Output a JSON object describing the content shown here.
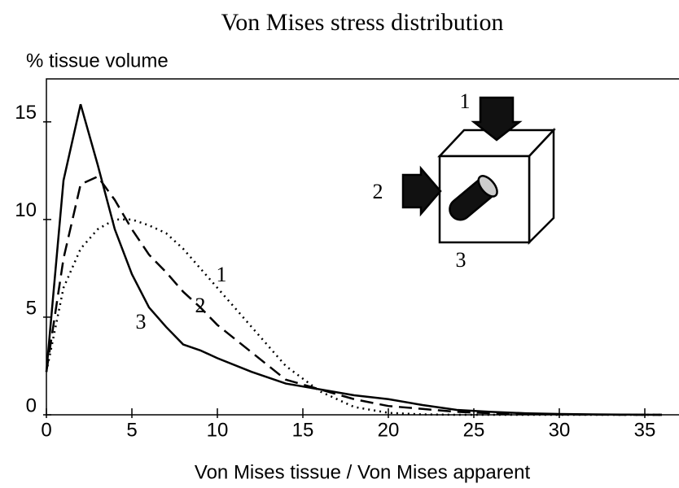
{
  "chart_data": {
    "type": "line",
    "title": "Von Mises stress distribution",
    "y_label": "% tissue volume",
    "x_label": "Von Mises tissue / Von Mises apparent",
    "x": [
      0,
      1,
      2,
      3,
      4,
      5,
      6,
      7,
      8,
      9,
      10,
      12,
      14,
      16,
      18,
      20,
      22,
      24,
      26,
      28,
      30,
      32,
      34,
      36
    ],
    "series": [
      {
        "name": "1",
        "color": "#000000",
        "style": "dotted",
        "values": [
          2.2,
          6.5,
          8.5,
          9.5,
          10,
          10,
          9.7,
          9.3,
          8.5,
          7.5,
          6.5,
          4.5,
          2.5,
          1.2,
          0.4,
          0.1,
          0.02,
          0,
          0,
          0,
          0,
          0,
          0,
          0
        ]
      },
      {
        "name": "2",
        "color": "#000000",
        "style": "dashed",
        "values": [
          2.2,
          8,
          11.8,
          12.2,
          11,
          9.5,
          8.2,
          7.3,
          6.3,
          5.5,
          4.6,
          3.2,
          1.8,
          1.3,
          0.8,
          0.45,
          0.3,
          0.15,
          0.08,
          0.04,
          0.02,
          0.01,
          0,
          0
        ]
      },
      {
        "name": "3",
        "color": "#000000",
        "style": "solid",
        "values": [
          2.2,
          12,
          15.9,
          12.8,
          9.5,
          7.2,
          5.5,
          4.5,
          3.6,
          3.3,
          2.9,
          2.2,
          1.6,
          1.3,
          1.0,
          0.8,
          0.5,
          0.25,
          0.15,
          0.08,
          0.04,
          0.02,
          0.01,
          0
        ]
      }
    ],
    "annotations": [
      "1",
      "2",
      "3"
    ],
    "xlim": [
      0,
      37
    ],
    "ylim": [
      0,
      17.2
    ],
    "xticks": [
      0,
      5,
      10,
      15,
      20,
      25,
      30,
      35
    ],
    "yticks": [
      0,
      5,
      10,
      15
    ]
  }
}
